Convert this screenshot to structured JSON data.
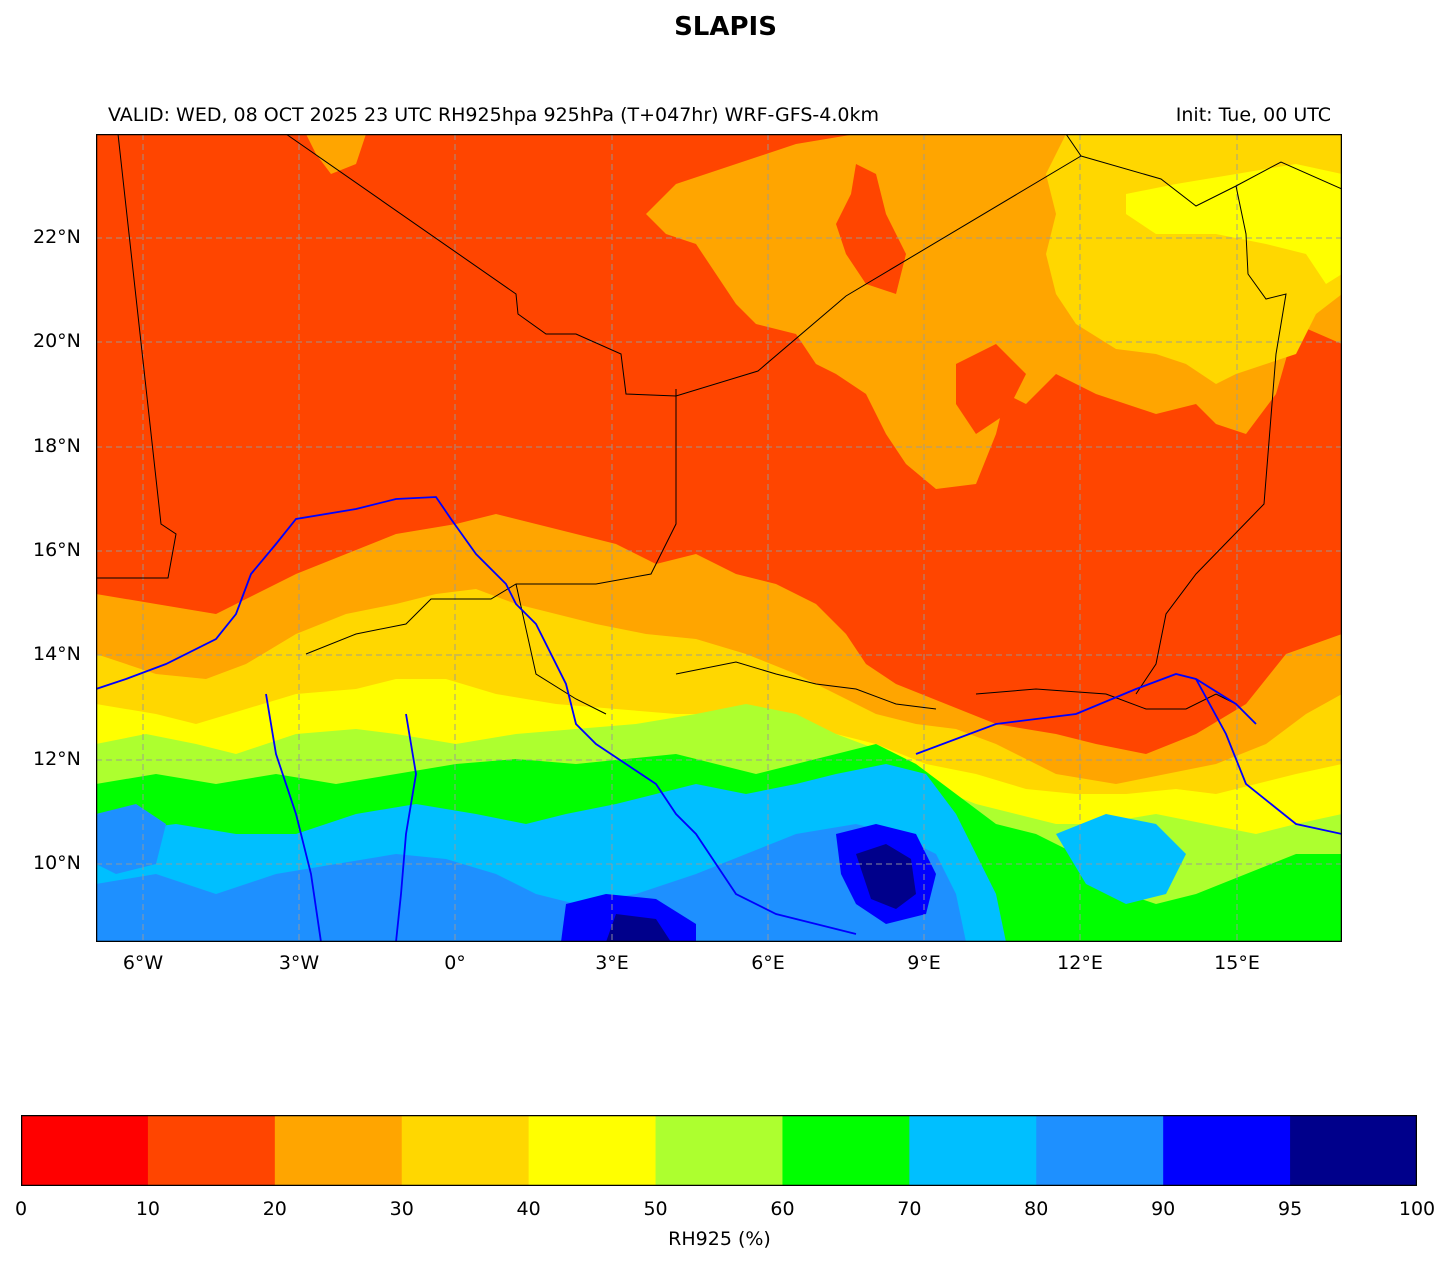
{
  "title": "SLAPIS",
  "subtitle_left": "VALID: WED, 08 OCT 2025 23 UTC  RH925hpa 925hPa (T+047hr) WRF-GFS-4.0km",
  "subtitle_right": "Init: Tue, 00 UTC",
  "map": {
    "lon_range": [
      -7,
      17
    ],
    "lat_range": [
      8.5,
      24
    ],
    "lat_ticks": [
      "22°N",
      "20°N",
      "18°N",
      "16°N",
      "14°N",
      "12°N",
      "10°N"
    ],
    "lon_ticks": [
      "6°W",
      "3°W",
      "0°",
      "3°E",
      "6°E",
      "9°E",
      "12°E",
      "15°E"
    ],
    "gridlines": true,
    "field": "RH925",
    "borders_color": "#000000",
    "rivers_color": "#0000ff"
  },
  "colorbar": {
    "label": "RH925 (%)",
    "tick_labels": [
      "0",
      "10",
      "20",
      "30",
      "40",
      "50",
      "60",
      "70",
      "80",
      "90",
      "95",
      "100"
    ],
    "bins": [
      {
        "from": 0,
        "to": 10,
        "color": "#ff0000"
      },
      {
        "from": 10,
        "to": 20,
        "color": "#ff4500"
      },
      {
        "from": 20,
        "to": 30,
        "color": "#ffa500"
      },
      {
        "from": 30,
        "to": 40,
        "color": "#ffd700"
      },
      {
        "from": 40,
        "to": 50,
        "color": "#ffff00"
      },
      {
        "from": 50,
        "to": 60,
        "color": "#adff2f"
      },
      {
        "from": 60,
        "to": 70,
        "color": "#00ff00"
      },
      {
        "from": 70,
        "to": 80,
        "color": "#00bfff"
      },
      {
        "from": 80,
        "to": 90,
        "color": "#1e90ff"
      },
      {
        "from": 90,
        "to": 95,
        "color": "#0000ff"
      },
      {
        "from": 95,
        "to": 100,
        "color": "#00008b"
      }
    ]
  }
}
